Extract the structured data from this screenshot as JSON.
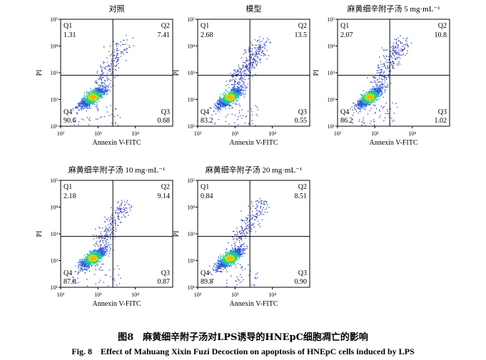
{
  "chart_data": [
    {
      "type": "scatter",
      "title": "对照",
      "xlabel": "Annexin V-FITC",
      "ylabel": "PI",
      "xscale": "log",
      "yscale": "log",
      "xlim": [
        100,
        100000
      ],
      "ylim": [
        10,
        100000
      ],
      "x_ticks": [
        "10²",
        "10³",
        "10⁴"
      ],
      "y_ticks": [
        "10¹",
        "10²",
        "10³",
        "10⁴",
        "10⁵"
      ],
      "quadrants": [
        {
          "name": "Q1",
          "value": "1.31"
        },
        {
          "name": "Q2",
          "value": "7.41"
        },
        {
          "name": "Q3",
          "value": "0.68"
        },
        {
          "name": "Q4",
          "value": "90.6"
        }
      ]
    },
    {
      "type": "scatter",
      "title": "模型",
      "xlabel": "Annexin V-FITC",
      "ylabel": "PI",
      "xscale": "log",
      "yscale": "log",
      "xlim": [
        100,
        100000
      ],
      "ylim": [
        10,
        100000
      ],
      "x_ticks": [
        "10²",
        "10³",
        "10⁴"
      ],
      "y_ticks": [
        "10¹",
        "10²",
        "10³",
        "10⁴",
        "10⁵"
      ],
      "quadrants": [
        {
          "name": "Q1",
          "value": "2.68"
        },
        {
          "name": "Q2",
          "value": "13.5"
        },
        {
          "name": "Q3",
          "value": "0.55"
        },
        {
          "name": "Q4",
          "value": "83.2"
        }
      ]
    },
    {
      "type": "scatter",
      "title": "麻黄细辛附子汤 5 mg·mL⁻¹",
      "xlabel": "Annexin V-FITC",
      "ylabel": "PI",
      "xscale": "log",
      "yscale": "log",
      "xlim": [
        100,
        100000
      ],
      "ylim": [
        10,
        100000
      ],
      "x_ticks": [
        "10²",
        "10³",
        "10⁴"
      ],
      "y_ticks": [
        "10¹",
        "10²",
        "10³",
        "10⁴",
        "10⁵"
      ],
      "quadrants": [
        {
          "name": "Q1",
          "value": "2.07"
        },
        {
          "name": "Q2",
          "value": "10.8"
        },
        {
          "name": "Q3",
          "value": "1.02"
        },
        {
          "name": "Q4",
          "value": "86.2"
        }
      ]
    },
    {
      "type": "scatter",
      "title": "麻黄细辛附子汤 10 mg·mL⁻¹",
      "xlabel": "Annexin V-FITC",
      "ylabel": "PI",
      "xscale": "log",
      "yscale": "log",
      "xlim": [
        100,
        100000
      ],
      "ylim": [
        10,
        100000
      ],
      "x_ticks": [
        "10²",
        "10³",
        "10⁴"
      ],
      "y_ticks": [
        "10¹",
        "10²",
        "10³",
        "10⁴",
        "10⁵"
      ],
      "quadrants": [
        {
          "name": "Q1",
          "value": "2.18"
        },
        {
          "name": "Q2",
          "value": "9.14"
        },
        {
          "name": "Q3",
          "value": "0.87"
        },
        {
          "name": "Q4",
          "value": "87.8"
        }
      ]
    },
    {
      "type": "scatter",
      "title": "麻黄细辛附子汤 20 mg·mL⁻¹",
      "xlabel": "Annexin V-FITC",
      "ylabel": "PI",
      "xscale": "log",
      "yscale": "log",
      "xlim": [
        100,
        100000
      ],
      "ylim": [
        10,
        100000
      ],
      "x_ticks": [
        "10²",
        "10³",
        "10⁴"
      ],
      "y_ticks": [
        "10¹",
        "10²",
        "10³",
        "10⁴",
        "10⁵"
      ],
      "quadrants": [
        {
          "name": "Q1",
          "value": "0.84"
        },
        {
          "name": "Q2",
          "value": "8.51"
        },
        {
          "name": "Q3",
          "value": "0.90"
        },
        {
          "name": "Q4",
          "value": "89.8"
        }
      ]
    }
  ],
  "caption_cn": "图8　麻黄细辛附子汤对LPS诱导的HNEpC细胞凋亡的影响",
  "caption_en": "Fig. 8　Effect of Mahuang Xixin Fuzi Decoction on apoptosis of HNEpC cells induced by LPS"
}
